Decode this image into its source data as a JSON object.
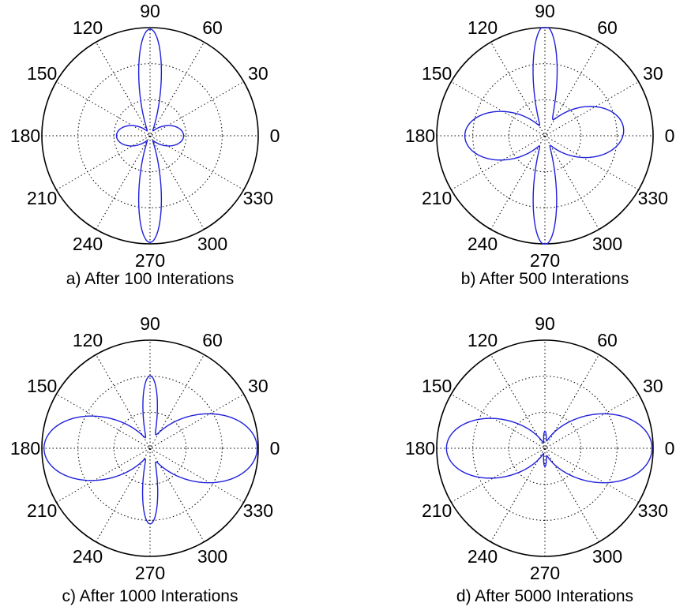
{
  "chart_data": [
    {
      "type": "polar",
      "caption": "a) After 100 Interations",
      "angle_ticks": [
        "0",
        "30",
        "60",
        "90",
        "120",
        "150",
        "180",
        "210",
        "240",
        "270",
        "300",
        "330"
      ],
      "grid": true,
      "radial_rings": 2,
      "lobes": [
        {
          "angle": 90,
          "r": 0.98,
          "halfwidth": 10
        },
        {
          "angle": 270,
          "r": 0.98,
          "halfwidth": 10
        },
        {
          "angle": 0,
          "r": 0.31,
          "halfwidth": 30
        },
        {
          "angle": 180,
          "r": 0.31,
          "halfwidth": 30
        }
      ],
      "line_color": "#1f1fdc"
    },
    {
      "type": "polar",
      "caption": "b) After 500 Interations",
      "angle_ticks": [
        "0",
        "30",
        "60",
        "90",
        "120",
        "150",
        "180",
        "210",
        "240",
        "270",
        "300",
        "330"
      ],
      "grid": true,
      "radial_rings": 2,
      "lobes": [
        {
          "angle": 90,
          "r": 0.99,
          "halfwidth": 10
        },
        {
          "angle": 270,
          "r": 0.99,
          "halfwidth": 10
        },
        {
          "angle": 5,
          "r": 0.73,
          "halfwidth": 32
        },
        {
          "angle": 180,
          "r": 0.74,
          "halfwidth": 30
        }
      ],
      "line_color": "#1f1fdc"
    },
    {
      "type": "polar",
      "caption": "c) After 1000 Interations",
      "angle_ticks": [
        "0",
        "30",
        "60",
        "90",
        "120",
        "150",
        "180",
        "210",
        "240",
        "270",
        "300",
        "330"
      ],
      "grid": true,
      "radial_rings": 2,
      "lobes": [
        {
          "angle": 90,
          "r": 0.64,
          "halfwidth": 9
        },
        {
          "angle": 270,
          "r": 0.67,
          "halfwidth": 9
        },
        {
          "angle": 0,
          "r": 0.99,
          "halfwidth": 32
        },
        {
          "angle": 180,
          "r": 0.98,
          "halfwidth": 30
        }
      ],
      "line_color": "#1f1fdc"
    },
    {
      "type": "polar",
      "caption": "d) After 5000 Interations",
      "angle_ticks": [
        "0",
        "30",
        "60",
        "90",
        "120",
        "150",
        "180",
        "210",
        "240",
        "270",
        "300",
        "330"
      ],
      "grid": true,
      "radial_rings": 2,
      "lobes": [
        {
          "angle": 90,
          "r": 0.13,
          "halfwidth": 6
        },
        {
          "angle": 270,
          "r": 0.14,
          "halfwidth": 6
        },
        {
          "angle": 0,
          "r": 0.99,
          "halfwidth": 32
        },
        {
          "angle": 180,
          "r": 0.91,
          "halfwidth": 30
        }
      ],
      "line_color": "#1f1fdc"
    }
  ]
}
